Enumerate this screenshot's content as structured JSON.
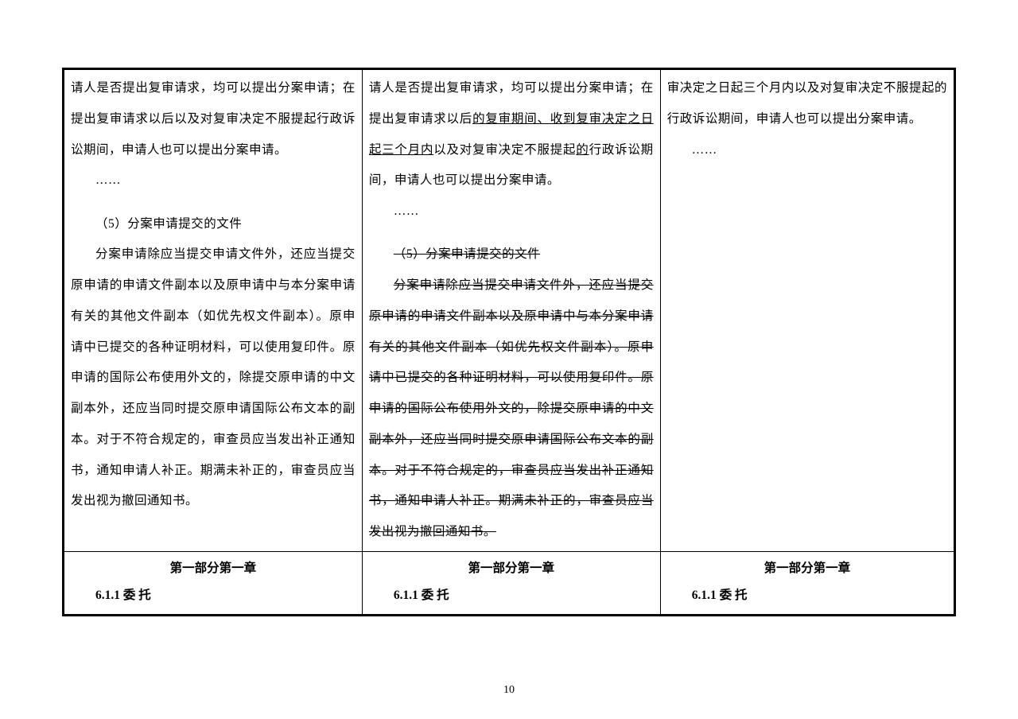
{
  "page_number": "10",
  "columns": {
    "col1": {
      "para1": "请人是否提出复审请求，均可以提出分案申请；在提出复审请求以后以及对复审决定不服提起行政诉讼期间，申请人也可以提出分案申请。",
      "ellipsis1": "……",
      "sub5_title": "（5）分案申请提交的文件",
      "sub5_body": "分案申请除应当提交申请文件外，还应当提交原申请的申请文件副本以及原申请中与本分案申请有关的其他文件副本（如优先权文件副本）。原申请中已提交的各种证明材料，可以使用复印件。原申请的国际公布使用外文的，除提交原申请的中文副本外，还应当同时提交原申请国际公布文本的副本。对于不符合规定的，审查员应当发出补正通知书，通知申请人补正。期满未补正的，审查员应当发出视为撤回通知书。"
    },
    "col2": {
      "para1_a": "请人是否提出复审请求，均可以提出分案申请；在提出复审请求以后",
      "para1_u": "的复审期间、收到复审决定之日起三个月内",
      "para1_b": "以及对复审决定不服提起",
      "para1_u2": "的",
      "para1_c": "行政诉讼期间，申请人也可以提出分案申请。",
      "ellipsis1": "……",
      "sub5_title": "（5）分案申请提交的文件",
      "sub5_body": "分案申请除应当提交申请文件外，还应当提交原申请的申请文件副本以及原申请中与本分案申请有关的其他文件副本（如优先权文件副本）。原申请中已提交的各种证明材料，可以使用复印件。原申请的国际公布使用外文的，除提交原申请的中文副本外，还应当同时提交原申请国际公布文本的副本。对于不符合规定的，审查员应当发出补正通知书，通知申请人补正。期满未补正的，审查员应当发出视为撤回通知书。"
    },
    "col3": {
      "para1": "审决定之日起三个月内以及对复审决定不服提起的行政诉讼期间，申请人也可以提出分案申请。",
      "ellipsis1": "……"
    }
  },
  "header_row": {
    "title": "第一部分第一章",
    "subtitle": "6.1.1 委 托"
  },
  "styles": {
    "body_fontsize": 15.5,
    "line_height": 2.5,
    "border_color": "#000000",
    "background": "#ffffff"
  }
}
